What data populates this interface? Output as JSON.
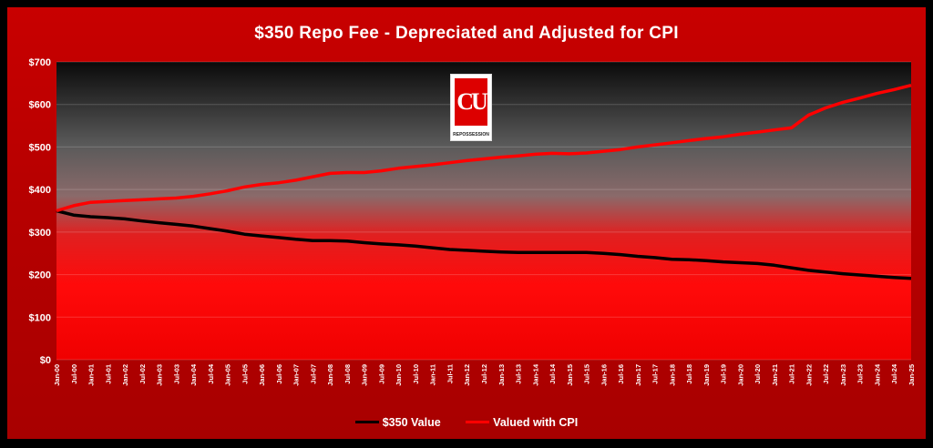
{
  "chart_data": {
    "type": "line",
    "title": "$350 Repo Fee - Depreciated and Adjusted for CPI",
    "xlabel": "",
    "ylabel": "",
    "ylim": [
      0,
      700
    ],
    "yticks": [
      "$0",
      "$100",
      "$200",
      "$300",
      "$400",
      "$500",
      "$600",
      "$700"
    ],
    "grid": true,
    "legend_placement": "bottom-center",
    "x": [
      "Jan-00",
      "Jul-00",
      "Jan-01",
      "Jul-01",
      "Jan-02",
      "Jul-02",
      "Jan-03",
      "Jul-03",
      "Jan-04",
      "Jul-04",
      "Jan-05",
      "Jul-05",
      "Jan-06",
      "Jul-06",
      "Jan-07",
      "Jul-07",
      "Jan-08",
      "Jul-08",
      "Jan-09",
      "Jul-09",
      "Jan-10",
      "Jul-10",
      "Jan-11",
      "Jul-11",
      "Jan-12",
      "Jul-12",
      "Jan-13",
      "Jul-13",
      "Jan-14",
      "Jul-14",
      "Jan-15",
      "Jul-15",
      "Jan-16",
      "Jul-16",
      "Jan-17",
      "Jul-17",
      "Jan-18",
      "Jul-18",
      "Jan-19",
      "Jul-19",
      "Jan-20",
      "Jul-20",
      "Jan-21",
      "Jul-21",
      "Jan-22",
      "Jul-22",
      "Jan-23",
      "Jul-23",
      "Jan-24",
      "Jul-24",
      "Jan-25"
    ],
    "series": [
      {
        "name": "$350 Value",
        "color": "#000000",
        "values": [
          350,
          340,
          336,
          334,
          331,
          326,
          322,
          318,
          314,
          308,
          302,
          295,
          291,
          287,
          283,
          280,
          280,
          279,
          275,
          272,
          270,
          267,
          263,
          259,
          257,
          255,
          253,
          252,
          252,
          252,
          252,
          252,
          250,
          247,
          243,
          240,
          236,
          235,
          233,
          230,
          228,
          226,
          222,
          216,
          210,
          206,
          202,
          199,
          196,
          193,
          191
        ]
      },
      {
        "name": "Valued with CPI",
        "color": "#ff0000",
        "values": [
          350,
          362,
          370,
          372,
          374,
          376,
          378,
          380,
          384,
          390,
          397,
          406,
          412,
          416,
          422,
          430,
          438,
          440,
          440,
          444,
          450,
          454,
          458,
          463,
          468,
          472,
          476,
          479,
          483,
          485,
          484,
          486,
          490,
          494,
          500,
          505,
          510,
          515,
          520,
          524,
          530,
          535,
          540,
          545,
          575,
          592,
          605,
          615,
          626,
          635,
          645
        ]
      }
    ]
  },
  "logo": {
    "monogram": "CU",
    "word": "REPOSSESSION"
  },
  "colors": {
    "background": "#c00000",
    "frame": "#000000",
    "axis_text": "#ffffff"
  }
}
